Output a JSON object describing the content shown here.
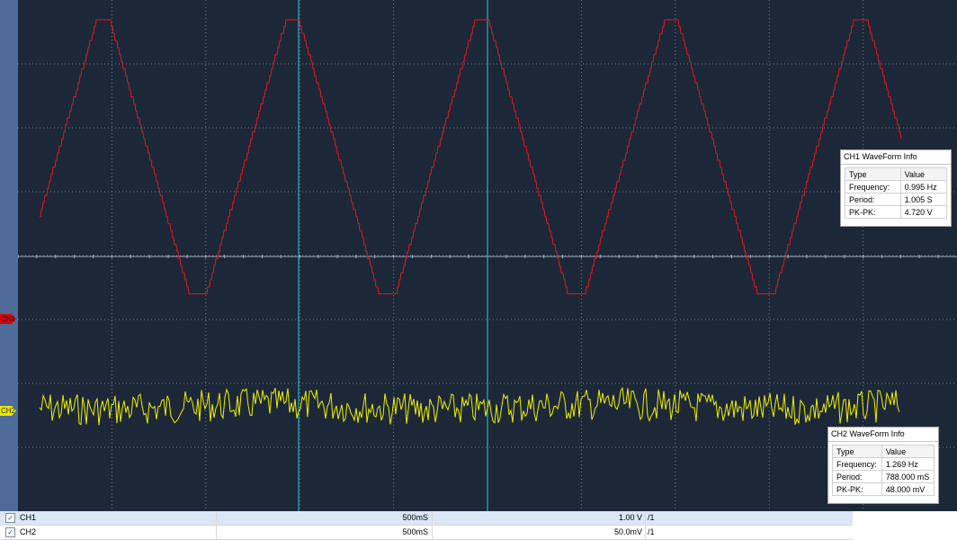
{
  "colors": {
    "background": "#1c2838",
    "ch1_trace": "#e01818",
    "ch2_trace": "#f0f000",
    "cursor": "#31c7d6",
    "grid": "#6f7d90"
  },
  "markers": {
    "ch1": "CH1",
    "ch2": "CH2"
  },
  "ch1_info": {
    "title": "CH1 WaveForm Info",
    "header": {
      "type": "Type",
      "value": "Value"
    },
    "rows": [
      {
        "type": "Frequency:",
        "value": "0.995 Hz"
      },
      {
        "type": "Period:",
        "value": "1.005 S"
      },
      {
        "type": "PK-PK:",
        "value": "4.720 V"
      }
    ]
  },
  "ch2_info": {
    "title": "CH2 WaveForm Info",
    "header": {
      "type": "Type",
      "value": "Value"
    },
    "rows": [
      {
        "type": "Frequency:",
        "value": "1.269 Hz"
      },
      {
        "type": "Period:",
        "value": "788.000 mS"
      },
      {
        "type": "PK-PK:",
        "value": "48.000 mV"
      }
    ]
  },
  "channels": [
    {
      "checked": true,
      "name": "CH1",
      "timebase": "500mS",
      "volts_div": "1.00 V",
      "probe": "/1"
    },
    {
      "checked": true,
      "name": "CH2",
      "timebase": "500mS",
      "volts_div": "50.0mV",
      "probe": "/1"
    }
  ],
  "check_glyph": "✓"
}
